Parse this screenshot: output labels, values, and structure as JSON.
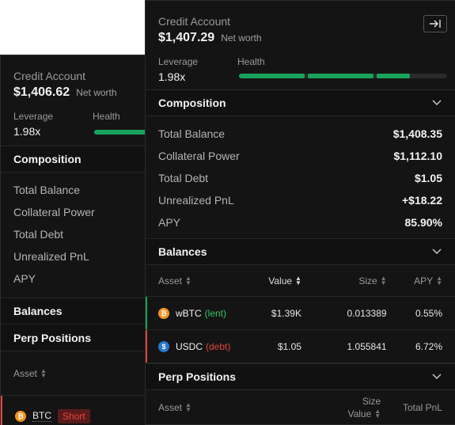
{
  "back": {
    "title": "Credit Account",
    "net_worth": "$1,406.62",
    "net_worth_label": "Net worth",
    "leverage_label": "Leverage",
    "leverage_value": "1.98x",
    "health_label": "Health",
    "composition_title": "Composition",
    "composition_items": [
      "Total Balance",
      "Collateral Power",
      "Total Debt",
      "Unrealized PnL",
      "APY"
    ],
    "balances_title": "Balances",
    "perp_title": "Perp Positions",
    "asset_header": "Asset",
    "perp_row": {
      "asset": "BTC",
      "side": "Short"
    }
  },
  "front": {
    "title": "Credit Account",
    "net_worth": "$1,407.29",
    "net_worth_label": "Net worth",
    "leverage_label": "Leverage",
    "leverage_value": "1.98x",
    "health_label": "Health",
    "health_fraction": 0.47,
    "composition": {
      "title": "Composition",
      "rows": [
        {
          "label": "Total Balance",
          "value": "$1,408.35"
        },
        {
          "label": "Collateral Power",
          "value": "$1,112.10"
        },
        {
          "label": "Total Debt",
          "value": "$1.05"
        },
        {
          "label": "Unrealized PnL",
          "value": "+$18.22"
        },
        {
          "label": "APY",
          "value": "85.90%"
        }
      ]
    },
    "balances": {
      "title": "Balances",
      "headers": {
        "asset": "Asset",
        "value": "Value",
        "size": "Size",
        "apy": "APY"
      },
      "rows": [
        {
          "symbol": "wBTC",
          "tag": "(lent)",
          "value": "$1.39K",
          "size": "0.013389",
          "apy": "0.55%"
        },
        {
          "symbol": "USDC",
          "tag": "(debt)",
          "value": "$1.05",
          "size": "1.055841",
          "apy": "6.72%"
        }
      ]
    },
    "perp": {
      "title": "Perp Positions",
      "headers": {
        "asset": "Asset",
        "size": "Size",
        "value": "Value",
        "total_pnl": "Total PnL"
      }
    }
  },
  "colors": {
    "accent_green": "#17a35c",
    "lent": "#39c26a",
    "debt": "#e0463e",
    "btc": "#f7931a",
    "usdc": "#2775ca"
  }
}
